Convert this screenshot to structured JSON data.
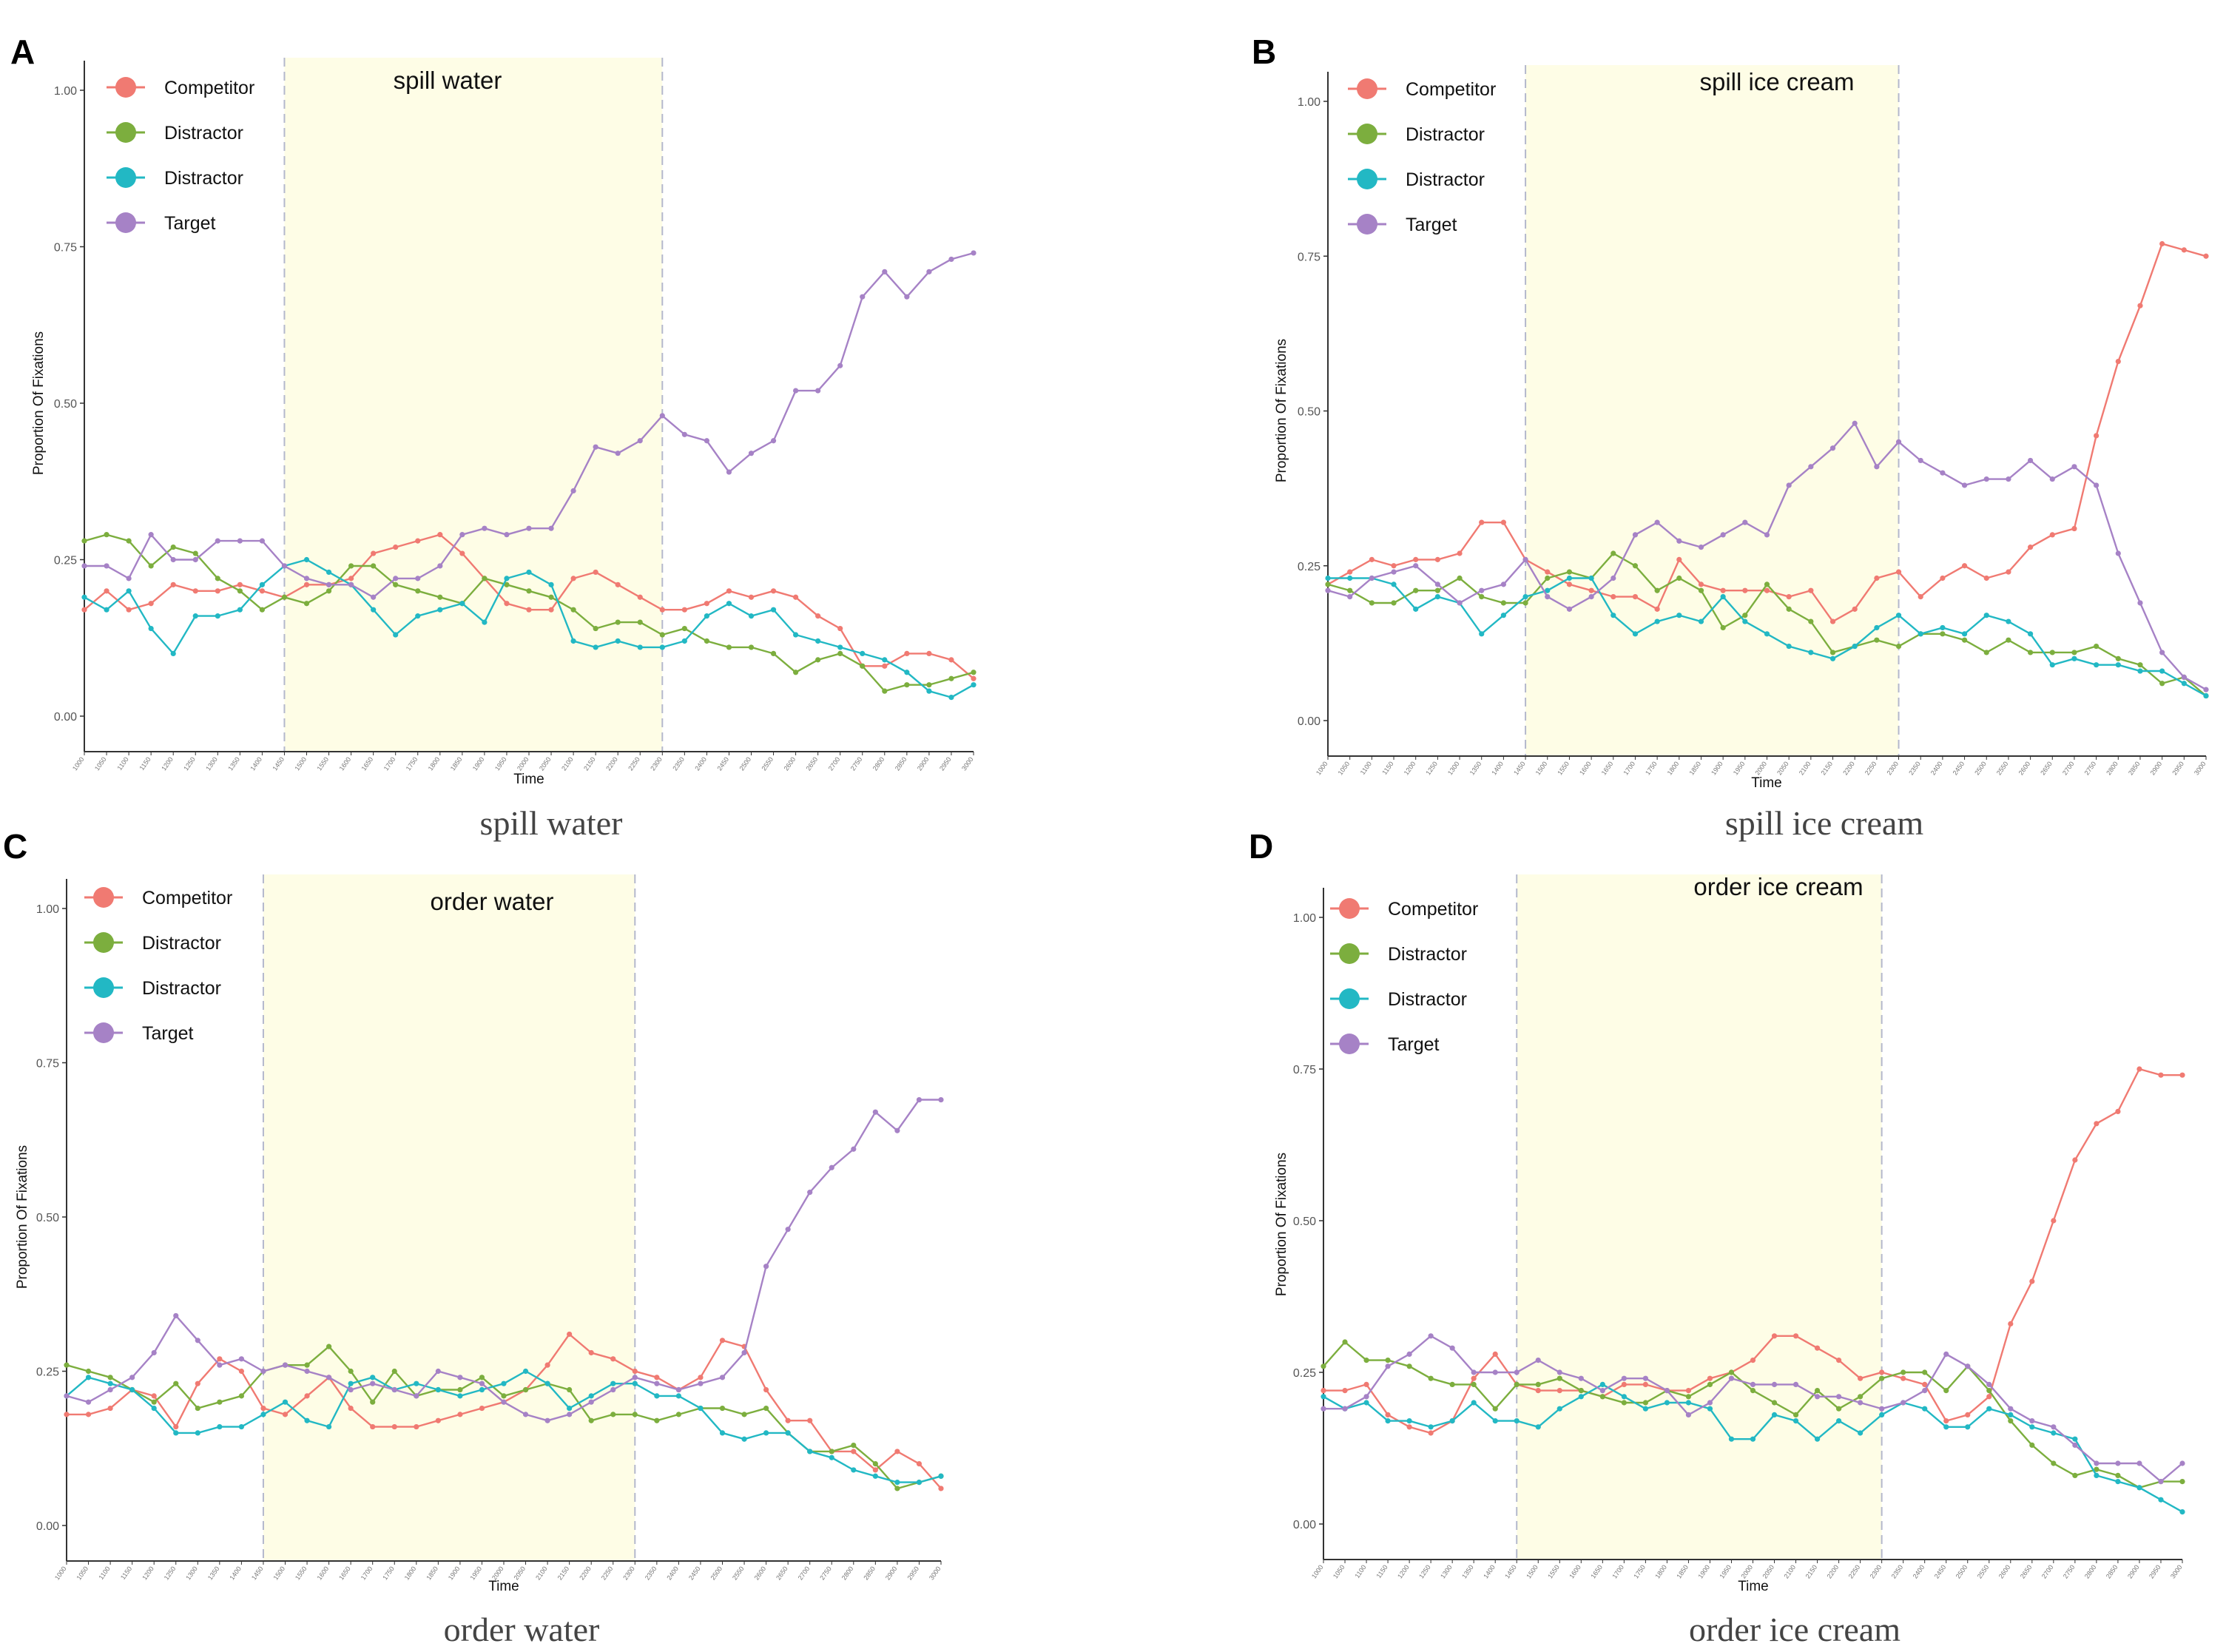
{
  "colors": {
    "Competitor": "#F07A72",
    "Distractor1": "#7CAE3E",
    "Distractor2": "#22B8C4",
    "Target": "#A682C6",
    "shade": "#FEFDE6",
    "dash": "#B4B8CC",
    "axis": "#333333"
  },
  "chart_data": [
    {
      "type": "line",
      "panel": "A",
      "caption": "spill water",
      "shade_label": "spill water",
      "xlabel": "Time",
      "ylabel": "Proportion Of Fixations",
      "ylim": [
        0,
        1
      ],
      "yticks": [
        "0.00",
        "0.25",
        "0.50",
        "0.75",
        "1.00"
      ],
      "x": [
        1000,
        1050,
        1100,
        1150,
        1200,
        1250,
        1300,
        1350,
        1400,
        1450,
        1500,
        1550,
        1600,
        1650,
        1700,
        1750,
        1800,
        1850,
        1900,
        1950,
        2000,
        2050,
        2100,
        2150,
        2200,
        2250,
        2300,
        2350,
        2400,
        2450,
        2500,
        2550,
        2600,
        2650,
        2700,
        2750,
        2800,
        2850,
        2900,
        2950,
        3000
      ],
      "shade_range": [
        1450,
        2300
      ],
      "legend": [
        "Competitor",
        "Distractor",
        "Distractor",
        "Target"
      ],
      "series": [
        {
          "name": "Competitor",
          "values": [
            0.17,
            0.2,
            0.17,
            0.18,
            0.21,
            0.2,
            0.2,
            0.21,
            0.2,
            0.19,
            0.21,
            0.21,
            0.22,
            0.26,
            0.27,
            0.28,
            0.29,
            0.26,
            0.22,
            0.18,
            0.17,
            0.17,
            0.22,
            0.23,
            0.21,
            0.19,
            0.17,
            0.17,
            0.18,
            0.2,
            0.19,
            0.2,
            0.19,
            0.16,
            0.14,
            0.08,
            0.08,
            0.1,
            0.1,
            0.09,
            0.06
          ]
        },
        {
          "name": "Distractor",
          "values": [
            0.28,
            0.29,
            0.28,
            0.24,
            0.27,
            0.26,
            0.22,
            0.2,
            0.17,
            0.19,
            0.18,
            0.2,
            0.24,
            0.24,
            0.21,
            0.2,
            0.19,
            0.18,
            0.22,
            0.21,
            0.2,
            0.19,
            0.17,
            0.14,
            0.15,
            0.15,
            0.13,
            0.14,
            0.12,
            0.11,
            0.11,
            0.1,
            0.07,
            0.09,
            0.1,
            0.08,
            0.04,
            0.05,
            0.05,
            0.06,
            0.07
          ]
        },
        {
          "name": "Distractor",
          "values": [
            0.19,
            0.17,
            0.2,
            0.14,
            0.1,
            0.16,
            0.16,
            0.17,
            0.21,
            0.24,
            0.25,
            0.23,
            0.21,
            0.17,
            0.13,
            0.16,
            0.17,
            0.18,
            0.15,
            0.22,
            0.23,
            0.21,
            0.12,
            0.11,
            0.12,
            0.11,
            0.11,
            0.12,
            0.16,
            0.18,
            0.16,
            0.17,
            0.13,
            0.12,
            0.11,
            0.1,
            0.09,
            0.07,
            0.04,
            0.03,
            0.05
          ]
        },
        {
          "name": "Target",
          "values": [
            0.24,
            0.24,
            0.22,
            0.29,
            0.25,
            0.25,
            0.28,
            0.28,
            0.28,
            0.24,
            0.22,
            0.21,
            0.21,
            0.19,
            0.22,
            0.22,
            0.24,
            0.29,
            0.3,
            0.29,
            0.3,
            0.3,
            0.36,
            0.43,
            0.42,
            0.44,
            0.48,
            0.45,
            0.44,
            0.39,
            0.42,
            0.44,
            0.52,
            0.52,
            0.56,
            0.67,
            0.71,
            0.67,
            0.71,
            0.73,
            0.74
          ]
        }
      ]
    },
    {
      "type": "line",
      "panel": "B",
      "caption": "spill ice cream",
      "shade_label": "spill ice cream",
      "xlabel": "Time",
      "ylabel": "Proportion Of Fixations",
      "ylim": [
        0,
        1
      ],
      "yticks": [
        "0.00",
        "0.25",
        "0.50",
        "0.75",
        "1.00"
      ],
      "x": [
        1000,
        1050,
        1100,
        1150,
        1200,
        1250,
        1300,
        1350,
        1400,
        1450,
        1500,
        1550,
        1600,
        1650,
        1700,
        1750,
        1800,
        1850,
        1900,
        1950,
        2000,
        2050,
        2100,
        2150,
        2200,
        2250,
        2300,
        2350,
        2400,
        2450,
        2500,
        2550,
        2600,
        2650,
        2700,
        2750,
        2800,
        2850,
        2900,
        2950,
        3000
      ],
      "shade_range": [
        1450,
        2300
      ],
      "legend": [
        "Competitor",
        "Distractor",
        "Distractor",
        "Target"
      ],
      "series": [
        {
          "name": "Competitor",
          "values": [
            0.22,
            0.24,
            0.26,
            0.25,
            0.26,
            0.26,
            0.27,
            0.32,
            0.32,
            0.26,
            0.24,
            0.22,
            0.21,
            0.2,
            0.2,
            0.18,
            0.26,
            0.22,
            0.21,
            0.21,
            0.21,
            0.2,
            0.21,
            0.16,
            0.18,
            0.23,
            0.24,
            0.2,
            0.23,
            0.25,
            0.23,
            0.24,
            0.28,
            0.3,
            0.31,
            0.46,
            0.58,
            0.67,
            0.77,
            0.76,
            0.75
          ]
        },
        {
          "name": "Distractor",
          "values": [
            0.22,
            0.21,
            0.19,
            0.19,
            0.21,
            0.21,
            0.23,
            0.2,
            0.19,
            0.19,
            0.23,
            0.24,
            0.23,
            0.27,
            0.25,
            0.21,
            0.23,
            0.21,
            0.15,
            0.17,
            0.22,
            0.18,
            0.16,
            0.11,
            0.12,
            0.13,
            0.12,
            0.14,
            0.14,
            0.13,
            0.11,
            0.13,
            0.11,
            0.11,
            0.11,
            0.12,
            0.1,
            0.09,
            0.06,
            0.07,
            0.04
          ]
        },
        {
          "name": "Distractor",
          "values": [
            0.23,
            0.23,
            0.23,
            0.22,
            0.18,
            0.2,
            0.19,
            0.14,
            0.17,
            0.2,
            0.21,
            0.23,
            0.23,
            0.17,
            0.14,
            0.16,
            0.17,
            0.16,
            0.2,
            0.16,
            0.14,
            0.12,
            0.11,
            0.1,
            0.12,
            0.15,
            0.17,
            0.14,
            0.15,
            0.14,
            0.17,
            0.16,
            0.14,
            0.09,
            0.1,
            0.09,
            0.09,
            0.08,
            0.08,
            0.06,
            0.04
          ]
        },
        {
          "name": "Target",
          "values": [
            0.21,
            0.2,
            0.23,
            0.24,
            0.25,
            0.22,
            0.19,
            0.21,
            0.22,
            0.26,
            0.2,
            0.18,
            0.2,
            0.23,
            0.3,
            0.32,
            0.29,
            0.28,
            0.3,
            0.32,
            0.3,
            0.38,
            0.41,
            0.44,
            0.48,
            0.41,
            0.45,
            0.42,
            0.4,
            0.38,
            0.39,
            0.39,
            0.42,
            0.39,
            0.41,
            0.38,
            0.27,
            0.19,
            0.11,
            0.07,
            0.05
          ]
        }
      ]
    },
    {
      "type": "line",
      "panel": "C",
      "caption": "order water",
      "shade_label": "order water",
      "xlabel": "Time",
      "ylabel": "Proportion Of Fixations",
      "ylim": [
        0,
        1
      ],
      "yticks": [
        "0.00",
        "0.25",
        "0.50",
        "0.75",
        "1.00"
      ],
      "x": [
        1000,
        1050,
        1100,
        1150,
        1200,
        1250,
        1300,
        1350,
        1400,
        1450,
        1500,
        1550,
        1600,
        1650,
        1700,
        1750,
        1800,
        1850,
        1900,
        1950,
        2000,
        2050,
        2100,
        2150,
        2200,
        2250,
        2300,
        2350,
        2400,
        2450,
        2500,
        2550,
        2600,
        2650,
        2700,
        2750,
        2800,
        2850,
        2900,
        2950,
        3000
      ],
      "shade_range": [
        1450,
        2300
      ],
      "legend": [
        "Competitor",
        "Distractor",
        "Distractor",
        "Target"
      ],
      "series": [
        {
          "name": "Competitor",
          "values": [
            0.18,
            0.18,
            0.19,
            0.22,
            0.21,
            0.16,
            0.23,
            0.27,
            0.25,
            0.19,
            0.18,
            0.21,
            0.24,
            0.19,
            0.16,
            0.16,
            0.16,
            0.17,
            0.18,
            0.19,
            0.2,
            0.22,
            0.26,
            0.31,
            0.28,
            0.27,
            0.25,
            0.24,
            0.22,
            0.24,
            0.3,
            0.29,
            0.22,
            0.17,
            0.17,
            0.12,
            0.12,
            0.09,
            0.12,
            0.1,
            0.06
          ]
        },
        {
          "name": "Distractor",
          "values": [
            0.26,
            0.25,
            0.24,
            0.22,
            0.2,
            0.23,
            0.19,
            0.2,
            0.21,
            0.25,
            0.26,
            0.26,
            0.29,
            0.25,
            0.2,
            0.25,
            0.21,
            0.22,
            0.22,
            0.24,
            0.21,
            0.22,
            0.23,
            0.22,
            0.17,
            0.18,
            0.18,
            0.17,
            0.18,
            0.19,
            0.19,
            0.18,
            0.19,
            0.15,
            0.12,
            0.12,
            0.13,
            0.1,
            0.06,
            0.07,
            0.08
          ]
        },
        {
          "name": "Distractor",
          "values": [
            0.21,
            0.24,
            0.23,
            0.22,
            0.19,
            0.15,
            0.15,
            0.16,
            0.16,
            0.18,
            0.2,
            0.17,
            0.16,
            0.23,
            0.24,
            0.22,
            0.23,
            0.22,
            0.21,
            0.22,
            0.23,
            0.25,
            0.23,
            0.19,
            0.21,
            0.23,
            0.23,
            0.21,
            0.21,
            0.19,
            0.15,
            0.14,
            0.15,
            0.15,
            0.12,
            0.11,
            0.09,
            0.08,
            0.07,
            0.07,
            0.08
          ]
        },
        {
          "name": "Target",
          "values": [
            0.21,
            0.2,
            0.22,
            0.24,
            0.28,
            0.34,
            0.3,
            0.26,
            0.27,
            0.25,
            0.26,
            0.25,
            0.24,
            0.22,
            0.23,
            0.22,
            0.21,
            0.25,
            0.24,
            0.23,
            0.2,
            0.18,
            0.17,
            0.18,
            0.2,
            0.22,
            0.24,
            0.23,
            0.22,
            0.23,
            0.24,
            0.28,
            0.42,
            0.48,
            0.54,
            0.58,
            0.61,
            0.67,
            0.64,
            0.69,
            0.69
          ]
        }
      ]
    },
    {
      "type": "line",
      "panel": "D",
      "caption": "order ice cream",
      "shade_label": "order ice cream",
      "xlabel": "Time",
      "ylabel": "Proportion Of Fixations",
      "ylim": [
        0,
        1
      ],
      "yticks": [
        "0.00",
        "0.25",
        "0.50",
        "0.75",
        "1.00"
      ],
      "x": [
        1000,
        1050,
        1100,
        1150,
        1200,
        1250,
        1300,
        1350,
        1400,
        1450,
        1500,
        1550,
        1600,
        1650,
        1700,
        1750,
        1800,
        1850,
        1900,
        1950,
        2000,
        2050,
        2100,
        2150,
        2200,
        2250,
        2300,
        2350,
        2400,
        2450,
        2500,
        2550,
        2600,
        2650,
        2700,
        2750,
        2800,
        2850,
        2900,
        2950,
        3000
      ],
      "shade_range": [
        1450,
        2300
      ],
      "legend": [
        "Competitor",
        "Distractor",
        "Distractor",
        "Target"
      ],
      "series": [
        {
          "name": "Competitor",
          "values": [
            0.22,
            0.22,
            0.23,
            0.18,
            0.16,
            0.15,
            0.17,
            0.24,
            0.28,
            0.23,
            0.22,
            0.22,
            0.22,
            0.21,
            0.23,
            0.23,
            0.22,
            0.22,
            0.24,
            0.25,
            0.27,
            0.31,
            0.31,
            0.29,
            0.27,
            0.24,
            0.25,
            0.24,
            0.23,
            0.17,
            0.18,
            0.21,
            0.33,
            0.4,
            0.5,
            0.6,
            0.66,
            0.68,
            0.75,
            0.74,
            0.74
          ]
        },
        {
          "name": "Distractor",
          "values": [
            0.26,
            0.3,
            0.27,
            0.27,
            0.26,
            0.24,
            0.23,
            0.23,
            0.19,
            0.23,
            0.23,
            0.24,
            0.22,
            0.21,
            0.2,
            0.2,
            0.22,
            0.21,
            0.23,
            0.25,
            0.22,
            0.2,
            0.18,
            0.22,
            0.19,
            0.21,
            0.24,
            0.25,
            0.25,
            0.22,
            0.26,
            0.22,
            0.17,
            0.13,
            0.1,
            0.08,
            0.09,
            0.08,
            0.06,
            0.07,
            0.07
          ]
        },
        {
          "name": "Distractor",
          "values": [
            0.21,
            0.19,
            0.2,
            0.17,
            0.17,
            0.16,
            0.17,
            0.2,
            0.17,
            0.17,
            0.16,
            0.19,
            0.21,
            0.23,
            0.21,
            0.19,
            0.2,
            0.2,
            0.19,
            0.14,
            0.14,
            0.18,
            0.17,
            0.14,
            0.17,
            0.15,
            0.18,
            0.2,
            0.19,
            0.16,
            0.16,
            0.19,
            0.18,
            0.16,
            0.15,
            0.14,
            0.08,
            0.07,
            0.06,
            0.04,
            0.02
          ]
        },
        {
          "name": "Target",
          "values": [
            0.19,
            0.19,
            0.21,
            0.26,
            0.28,
            0.31,
            0.29,
            0.25,
            0.25,
            0.25,
            0.27,
            0.25,
            0.24,
            0.22,
            0.24,
            0.24,
            0.22,
            0.18,
            0.2,
            0.24,
            0.23,
            0.23,
            0.23,
            0.21,
            0.21,
            0.2,
            0.19,
            0.2,
            0.22,
            0.28,
            0.26,
            0.23,
            0.19,
            0.17,
            0.16,
            0.13,
            0.1,
            0.1,
            0.1,
            0.07,
            0.1
          ]
        }
      ]
    }
  ]
}
